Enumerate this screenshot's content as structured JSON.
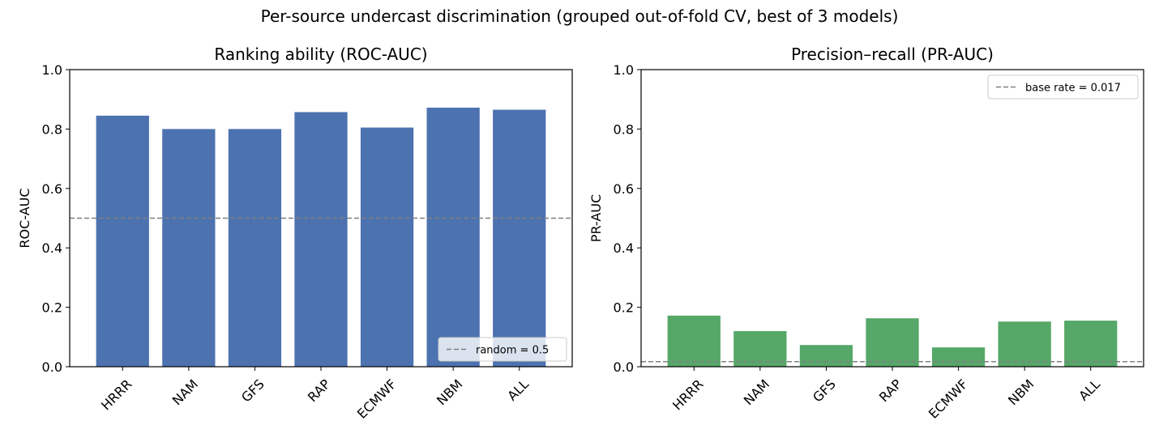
{
  "figure": {
    "suptitle": "Per-source undercast discrimination (grouped out-of-fold CV, best of 3 models)"
  },
  "chart_data": [
    {
      "type": "bar",
      "title": "Ranking ability (ROC-AUC)",
      "xlabel": "",
      "ylabel": "ROC-AUC",
      "categories": [
        "HRRR",
        "NAM",
        "GFS",
        "RAP",
        "ECMWF",
        "NBM",
        "ALL"
      ],
      "values": [
        0.845,
        0.8,
        0.8,
        0.857,
        0.805,
        0.872,
        0.865
      ],
      "ylim": [
        0,
        1.0
      ],
      "yticks": [
        "0.0",
        "0.2",
        "0.4",
        "0.6",
        "0.8",
        "1.0"
      ],
      "bar_color": "#4c72b0",
      "reference_line": {
        "value": 0.5,
        "label": "random = 0.5",
        "color": "#808080"
      },
      "legend_position": "lower-right",
      "grid": false
    },
    {
      "type": "bar",
      "title": "Precision–recall (PR-AUC)",
      "xlabel": "",
      "ylabel": "PR-AUC",
      "categories": [
        "HRRR",
        "NAM",
        "GFS",
        "RAP",
        "ECMWF",
        "NBM",
        "ALL"
      ],
      "values": [
        0.172,
        0.12,
        0.073,
        0.163,
        0.065,
        0.152,
        0.155
      ],
      "ylim": [
        0,
        1.0
      ],
      "yticks": [
        "0.0",
        "0.2",
        "0.4",
        "0.6",
        "0.8",
        "1.0"
      ],
      "bar_color": "#55a868",
      "reference_line": {
        "value": 0.017,
        "label": "base rate = 0.017",
        "color": "#808080"
      },
      "legend_position": "upper-right",
      "grid": false
    }
  ]
}
